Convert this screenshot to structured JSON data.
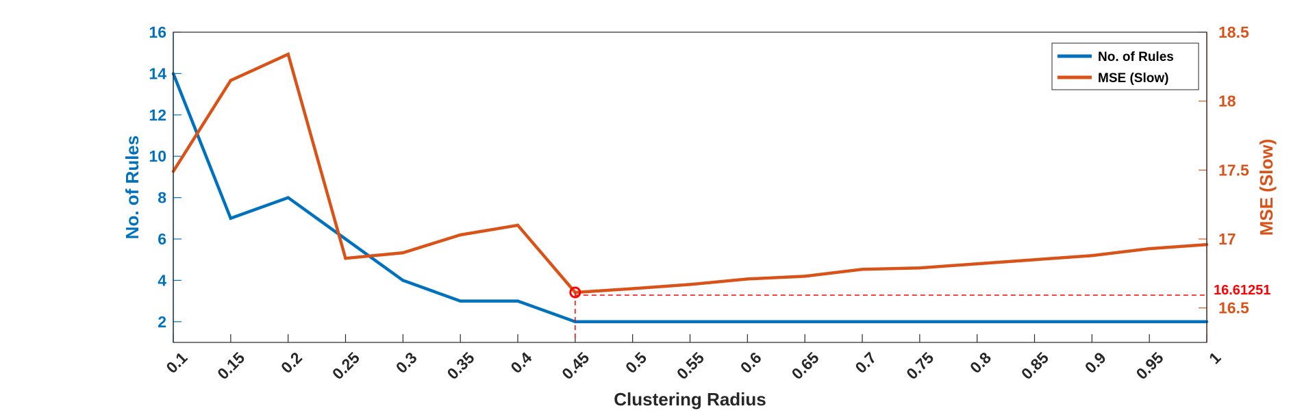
{
  "chart_data": {
    "type": "line",
    "xlabel": "Clustering Radius",
    "ylabel_left": "No. of Rules",
    "ylabel_right": "MSE (Slow)",
    "x": [
      0.1,
      0.15,
      0.2,
      0.25,
      0.3,
      0.35,
      0.4,
      0.45,
      0.5,
      0.55,
      0.6,
      0.65,
      0.7,
      0.75,
      0.8,
      0.85,
      0.9,
      0.95,
      1
    ],
    "x_tick_labels": [
      "0.1",
      "0.15",
      "0.2",
      "0.25",
      "0.3",
      "0.35",
      "0.4",
      "0.45",
      "0.5",
      "0.55",
      "0.6",
      "0.65",
      "0.7",
      "0.75",
      "0.8",
      "0.85",
      "0.9",
      "0.95",
      "1"
    ],
    "xlim": [
      0.1,
      1
    ],
    "ylim_left": [
      1,
      16
    ],
    "y_left_ticks": [
      2,
      4,
      6,
      8,
      10,
      12,
      14,
      16
    ],
    "y_left_tick_labels": [
      "2",
      "4",
      "6",
      "8",
      "10",
      "12",
      "14",
      "16"
    ],
    "ylim_right": [
      16.25,
      18.5
    ],
    "y_right_ticks": [
      16.5,
      17,
      17.5,
      18,
      18.5
    ],
    "y_right_tick_labels": [
      "16.5",
      "17",
      "17.5",
      "18",
      "18.5"
    ],
    "series": [
      {
        "name": "No. of Rules",
        "axis": "left",
        "color": "#0072BD",
        "values": [
          14,
          7,
          8,
          6,
          4,
          3,
          3,
          2,
          2,
          2,
          2,
          2,
          2,
          2,
          2,
          2,
          2,
          2,
          2
        ]
      },
      {
        "name": "MSE (Slow)",
        "axis": "right",
        "color": "#D95319",
        "values": [
          17.49,
          18.15,
          18.34,
          16.86,
          16.9,
          17.03,
          17.1,
          16.61251,
          16.64,
          16.67,
          16.71,
          16.73,
          16.78,
          16.79,
          16.82,
          16.85,
          16.88,
          16.93,
          16.96
        ]
      }
    ],
    "legend_position": "top-right",
    "grid": false,
    "annotation": {
      "x": 0.45,
      "y": 16.61251,
      "label": "16.61251",
      "color": "#FF0000"
    }
  }
}
